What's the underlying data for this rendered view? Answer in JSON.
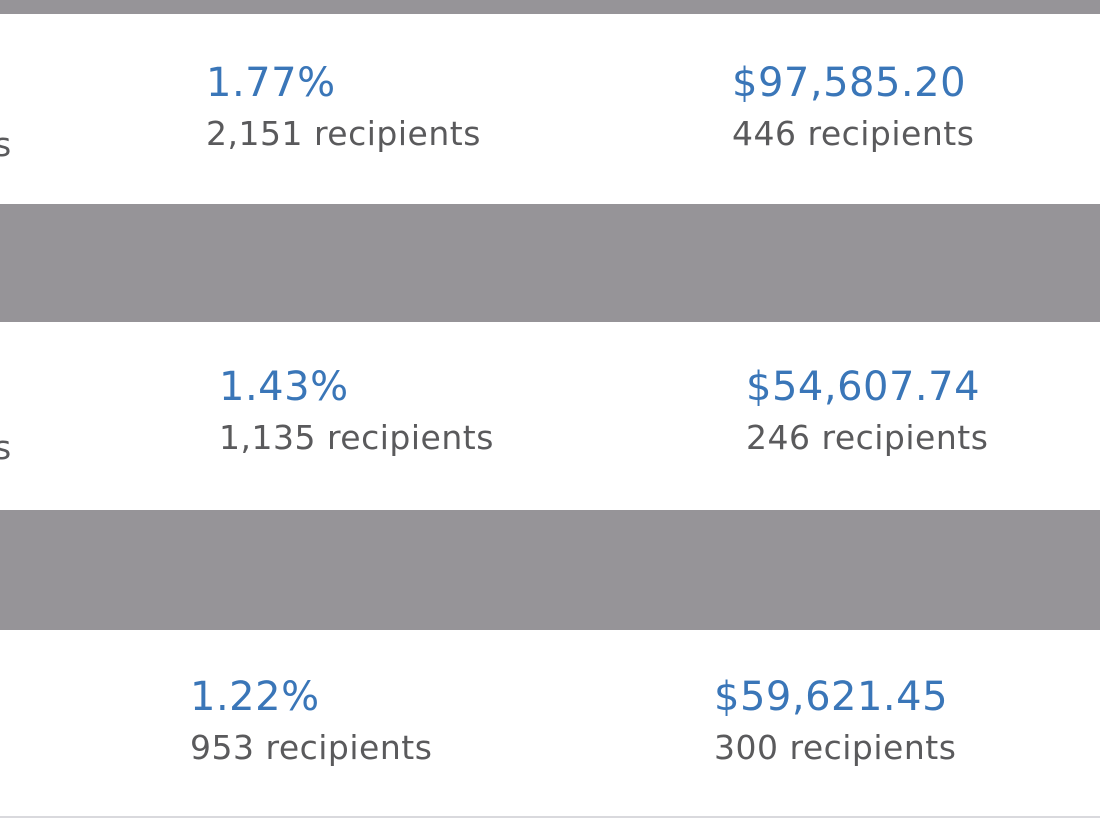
{
  "rows": [
    {
      "edge_text": "s",
      "rate": {
        "value": "1.77%",
        "recipients": "2,151 recipients"
      },
      "revenue": {
        "value": "$97,585.20",
        "recipients": "446 recipients"
      }
    },
    {
      "edge_text": "s",
      "rate": {
        "value": "1.43%",
        "recipients": "1,135 recipients"
      },
      "revenue": {
        "value": "$54,607.74",
        "recipients": "246 recipients"
      }
    },
    {
      "edge_text": "",
      "rate": {
        "value": "1.22%",
        "recipients": "953 recipients"
      },
      "revenue": {
        "value": "$59,621.45",
        "recipients": "300 recipients"
      }
    }
  ],
  "colors": {
    "metric": "#3a76b8",
    "subtext": "#5a5a5c",
    "band": "#969498",
    "row": "#ffffff"
  }
}
